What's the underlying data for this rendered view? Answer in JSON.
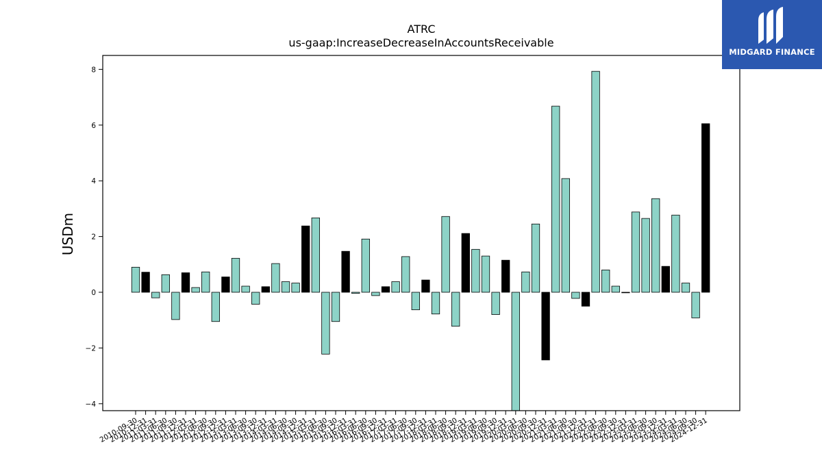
{
  "brand": {
    "name": "MIDGARD FINANCE",
    "logo_icon": "midgard-m-icon",
    "background": "#2b58b0"
  },
  "chart_data": {
    "type": "bar",
    "title": "ATRC",
    "subtitle": "us-gaap:IncreaseDecreaseInAccountsReceivable",
    "xlabel": "",
    "ylabel": "USDm",
    "ylim": [
      -4.25,
      8.5
    ],
    "yticks": [
      -4,
      -2,
      0,
      2,
      4,
      6,
      8
    ],
    "grid": false,
    "colors": {
      "quarter": "#8dd3c7",
      "fiscal_year_end": "#000000"
    },
    "categories": [
      "2010-09-30",
      "2010-12-31",
      "2011-03-31",
      "2011-06-30",
      "2011-09-30",
      "2011-12-31",
      "2012-03-31",
      "2012-06-30",
      "2012-09-30",
      "2012-12-31",
      "2013-03-31",
      "2013-06-30",
      "2013-09-30",
      "2013-12-31",
      "2014-03-31",
      "2014-06-30",
      "2014-09-30",
      "2014-12-31",
      "2015-03-31",
      "2015-06-30",
      "2015-09-30",
      "2015-12-31",
      "2016-03-31",
      "2016-06-30",
      "2016-09-30",
      "2016-12-31",
      "2017-03-31",
      "2017-06-30",
      "2017-09-30",
      "2017-12-31",
      "2018-03-31",
      "2018-06-30",
      "2018-09-30",
      "2018-12-31",
      "2019-03-31",
      "2019-06-30",
      "2019-09-30",
      "2019-12-31",
      "2020-03-31",
      "2020-06-30",
      "2020-09-30",
      "2020-12-31",
      "2021-03-31",
      "2021-06-30",
      "2021-09-30",
      "2021-12-31",
      "2022-03-31",
      "2022-06-30",
      "2022-09-30",
      "2022-12-31",
      "2023-03-31",
      "2023-06-30",
      "2023-09-30",
      "2023-12-31",
      "2024-03-31",
      "2024-06-30",
      "2024-09-30",
      "2024-12-31"
    ],
    "values": [
      0.9,
      0.72,
      -0.2,
      0.63,
      -0.98,
      0.7,
      0.17,
      0.73,
      -1.05,
      0.55,
      1.22,
      0.22,
      -0.43,
      0.2,
      1.03,
      0.38,
      0.33,
      2.38,
      2.67,
      -2.22,
      -1.05,
      1.47,
      -0.04,
      1.91,
      -0.12,
      0.2,
      0.38,
      1.28,
      -0.63,
      0.44,
      -0.78,
      2.72,
      -1.22,
      2.11,
      1.54,
      1.3,
      -0.8,
      1.15,
      -4.25,
      0.73,
      2.45,
      -2.43,
      6.68,
      4.08,
      -0.22,
      -0.5,
      7.93,
      0.8,
      0.22,
      -0.02,
      2.88,
      2.65,
      3.36,
      0.93,
      2.77,
      0.33,
      -0.92,
      6.05
    ],
    "fiscal_year_end": [
      false,
      true,
      false,
      false,
      false,
      true,
      false,
      false,
      false,
      true,
      false,
      false,
      false,
      true,
      false,
      false,
      false,
      true,
      false,
      false,
      false,
      true,
      false,
      false,
      false,
      true,
      false,
      false,
      false,
      true,
      false,
      false,
      false,
      true,
      false,
      false,
      false,
      true,
      false,
      false,
      false,
      true,
      false,
      false,
      false,
      true,
      false,
      false,
      false,
      true,
      false,
      false,
      false,
      true,
      false,
      false,
      false,
      true
    ]
  }
}
